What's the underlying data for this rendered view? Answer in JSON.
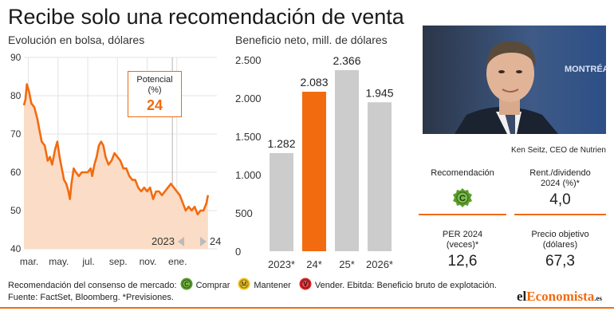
{
  "title": "Recibe solo una recomendación de venta",
  "line_chart": {
    "subtitle": "Evolución en bolsa, dólares",
    "potential_label": "Potencial\n(%)",
    "potential_value": "24",
    "year_left": "2023",
    "year_right": "24"
  },
  "bar_chart": {
    "subtitle": "Beneficio neto, mill. de dólares"
  },
  "chart_data": [
    {
      "type": "area",
      "title": "Evolución en bolsa, dólares",
      "ylim": [
        40,
        90
      ],
      "y_ticks": [
        40,
        50,
        60,
        70,
        80,
        90
      ],
      "x_tick_labels": [
        "mar.",
        "may.",
        "jul.",
        "sep.",
        "nov.",
        "ene."
      ],
      "x_range_months": [
        0,
        13
      ],
      "x_ticks": [
        0.3,
        2.3,
        4.3,
        6.3,
        8.3,
        10.3
      ],
      "year_divider_x": 10.0,
      "series": [
        {
          "points": [
            [
              0,
              77.5
            ],
            [
              0.1,
              79
            ],
            [
              0.2,
              83
            ],
            [
              0.35,
              81
            ],
            [
              0.5,
              78
            ],
            [
              0.7,
              77
            ],
            [
              0.9,
              74
            ],
            [
              1.05,
              71
            ],
            [
              1.2,
              68
            ],
            [
              1.4,
              67
            ],
            [
              1.6,
              63
            ],
            [
              1.75,
              64
            ],
            [
              1.9,
              62
            ],
            [
              2.1,
              66
            ],
            [
              2.25,
              68
            ],
            [
              2.4,
              64
            ],
            [
              2.55,
              61
            ],
            [
              2.7,
              58
            ],
            [
              2.85,
              57
            ],
            [
              3.0,
              55
            ],
            [
              3.1,
              53
            ],
            [
              3.2,
              57
            ],
            [
              3.35,
              61
            ],
            [
              3.5,
              60
            ],
            [
              3.7,
              59
            ],
            [
              3.9,
              60
            ],
            [
              4.1,
              60
            ],
            [
              4.3,
              60
            ],
            [
              4.5,
              61
            ],
            [
              4.6,
              59
            ],
            [
              4.75,
              62
            ],
            [
              4.9,
              64
            ],
            [
              5.05,
              67
            ],
            [
              5.2,
              68
            ],
            [
              5.35,
              67
            ],
            [
              5.5,
              64
            ],
            [
              5.7,
              62
            ],
            [
              5.9,
              63
            ],
            [
              6.1,
              65
            ],
            [
              6.3,
              64
            ],
            [
              6.5,
              63
            ],
            [
              6.7,
              61
            ],
            [
              6.9,
              61
            ],
            [
              7.1,
              59
            ],
            [
              7.3,
              58
            ],
            [
              7.5,
              58
            ],
            [
              7.7,
              56
            ],
            [
              7.9,
              55
            ],
            [
              8.1,
              56
            ],
            [
              8.3,
              55
            ],
            [
              8.5,
              56
            ],
            [
              8.7,
              53
            ],
            [
              8.9,
              55
            ],
            [
              9.1,
              55
            ],
            [
              9.3,
              54
            ],
            [
              9.5,
              55
            ],
            [
              9.7,
              56
            ],
            [
              9.9,
              57
            ],
            [
              10.1,
              56
            ],
            [
              10.3,
              55
            ],
            [
              10.5,
              54
            ],
            [
              10.7,
              52
            ],
            [
              10.9,
              50
            ],
            [
              11.1,
              51
            ],
            [
              11.3,
              50
            ],
            [
              11.5,
              51
            ],
            [
              11.7,
              49
            ],
            [
              11.9,
              50
            ],
            [
              12.1,
              50
            ],
            [
              12.3,
              52
            ],
            [
              12.4,
              54
            ]
          ]
        }
      ]
    },
    {
      "type": "bar",
      "title": "Beneficio neto, mill. de dólares",
      "categories": [
        "2023*",
        "24*",
        "25*",
        "2026*"
      ],
      "values": [
        1282,
        2083,
        2366,
        1945
      ],
      "value_labels": [
        "1.282",
        "2.083",
        "2.366",
        "1.945"
      ],
      "highlight_index": 1,
      "ylim": [
        0,
        2500
      ],
      "y_ticks": [
        0,
        500,
        1000,
        1500,
        2000,
        2500
      ],
      "y_tick_labels": [
        "0",
        "500",
        "1.000",
        "1.500",
        "2.000",
        "2.500"
      ]
    }
  ],
  "photo": {
    "caption": "Ken Seitz, CEO de Nutrien",
    "backdrop_text": "MONTRÉAL"
  },
  "stats": {
    "recommendation_label": "Recomendación",
    "recommendation_icon_letter": "C",
    "dividend_label": "Rent./dividendo\n2024 (%)*",
    "dividend_value": "4,0",
    "per_label": "PER 2024\n(veces)*",
    "per_value": "12,6",
    "target_label": "Precio objetivo\n(dólares)",
    "target_value": "67,3"
  },
  "legend": {
    "intro": "Recomendación del consenso de mercado:",
    "buy_letter": "C",
    "buy": "Comprar",
    "hold_letter": "M",
    "hold": "Mantener",
    "sell_letter": "V",
    "sell": "Vender. Ebitda: Beneficio bruto de explotación."
  },
  "source": "Fuente: FactSet, Bloomberg. *Previsiones.",
  "logo": {
    "part1": "el",
    "part2": "Economista",
    "part3": ".es"
  },
  "colors": {
    "accent": "#f26b0f",
    "area_fill": "#fbdcc6",
    "bar_gray": "#cccccc",
    "buy_green": "#5a9e2f",
    "hold_yellow": "#f2c21b",
    "sell_red": "#d9252a"
  }
}
